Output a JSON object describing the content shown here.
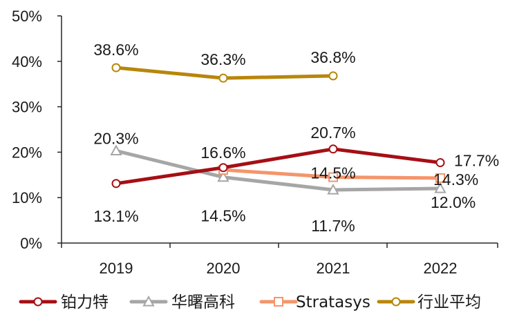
{
  "chart_data": {
    "type": "line",
    "title": "",
    "xlabel": "",
    "ylabel": "",
    "categories": [
      "2019",
      "2020",
      "2021",
      "2022"
    ],
    "ylim": [
      0,
      50
    ],
    "yticks": [
      0,
      10,
      20,
      30,
      40,
      50
    ],
    "ytick_labels": [
      "0%",
      "10%",
      "20%",
      "30%",
      "40%",
      "50%"
    ],
    "grid": false,
    "legend_position": "bottom",
    "series": [
      {
        "name": "铂力特",
        "color": "#a50f15",
        "marker": "circle",
        "values": [
          13.1,
          16.6,
          20.7,
          17.7
        ],
        "labels": [
          "13.1%",
          "16.6%",
          "20.7%",
          "17.7%"
        ]
      },
      {
        "name": "华曙高科",
        "color": "#a6a6a6",
        "marker": "triangle",
        "values": [
          20.3,
          14.5,
          11.7,
          12.0
        ],
        "labels": [
          "20.3%",
          "14.5%",
          "11.7%",
          "12.0%"
        ]
      },
      {
        "name": "Stratasys",
        "color": "#f4956b",
        "marker": "square",
        "values": [
          null,
          16.1,
          14.5,
          14.3
        ],
        "labels": [
          null,
          null,
          "14.5%",
          "14.3%"
        ]
      },
      {
        "name": "行业平均",
        "color": "#b8860b",
        "marker": "circle",
        "values": [
          38.6,
          36.3,
          36.8,
          null
        ],
        "labels": [
          "38.6%",
          "36.3%",
          "36.8%",
          null
        ]
      }
    ]
  }
}
